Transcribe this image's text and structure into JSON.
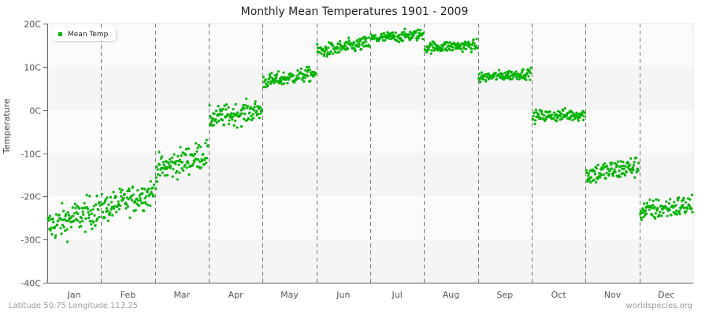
{
  "chart_data": {
    "type": "scatter",
    "title": "Monthly Mean Temperatures 1901 - 2009",
    "xlabel": "",
    "ylabel": "Temperature",
    "ylim": [
      -40,
      20
    ],
    "yticks": [
      "20C",
      "10C",
      "0C",
      "-10C",
      "-20C",
      "-30C",
      "-40C"
    ],
    "ytick_values": [
      20,
      10,
      0,
      -10,
      -20,
      -30,
      -40
    ],
    "categories": [
      "Jan",
      "Feb",
      "Mar",
      "Apr",
      "May",
      "Jun",
      "Jul",
      "Aug",
      "Sep",
      "Oct",
      "Nov",
      "Dec"
    ],
    "grid": "alternating horizontal bands, dashed vertical month separators",
    "legend_position": "top-left inside plot",
    "series": [
      {
        "name": "Mean Temp",
        "color": "#00b300",
        "points_per_month": 109,
        "monthly_distribution": [
          {
            "month": "Jan",
            "start_mean": -27,
            "end_mean": -23,
            "spread": 3.5,
            "min": -31.5,
            "max": -19
          },
          {
            "month": "Feb",
            "start_mean": -23,
            "end_mean": -19,
            "spread": 3.0,
            "min": -28,
            "max": -16
          },
          {
            "month": "Mar",
            "start_mean": -14,
            "end_mean": -10,
            "spread": 3.0,
            "min": -20,
            "max": -6
          },
          {
            "month": "Apr",
            "start_mean": -2,
            "end_mean": 0,
            "spread": 2.3,
            "min": -5,
            "max": 4
          },
          {
            "month": "May",
            "start_mean": 6.5,
            "end_mean": 8.5,
            "spread": 1.5,
            "min": 4.5,
            "max": 11
          },
          {
            "month": "Jun",
            "start_mean": 13.5,
            "end_mean": 15.5,
            "spread": 1.5,
            "min": 11,
            "max": 17.5
          },
          {
            "month": "Jul",
            "start_mean": 16.5,
            "end_mean": 17.5,
            "spread": 1.2,
            "min": 14.5,
            "max": 20
          },
          {
            "month": "Aug",
            "start_mean": 14.5,
            "end_mean": 15,
            "spread": 1.2,
            "min": 12.5,
            "max": 17.5
          },
          {
            "month": "Sep",
            "start_mean": 7.5,
            "end_mean": 8.5,
            "spread": 1.1,
            "min": 5.5,
            "max": 11
          },
          {
            "month": "Oct",
            "start_mean": -1.5,
            "end_mean": -1,
            "spread": 1.3,
            "min": -6.5,
            "max": 3
          },
          {
            "month": "Nov",
            "start_mean": -15,
            "end_mean": -13,
            "spread": 2.3,
            "min": -19.5,
            "max": -8
          },
          {
            "month": "Dec",
            "start_mean": -23.5,
            "end_mean": -22,
            "spread": 2.3,
            "min": -30,
            "max": -16
          }
        ]
      }
    ]
  },
  "legend": {
    "label": "Mean Temp",
    "color": "#00b300"
  },
  "footer": {
    "location": "Latitude 50.75 Longitude 113.25",
    "source": "worldspecies.org"
  },
  "colors": {
    "band_light": "#fbfbfb",
    "band_dark": "#f5f5f5",
    "axis": "#666666",
    "separator": "#777777",
    "tick_text": "#555555"
  }
}
